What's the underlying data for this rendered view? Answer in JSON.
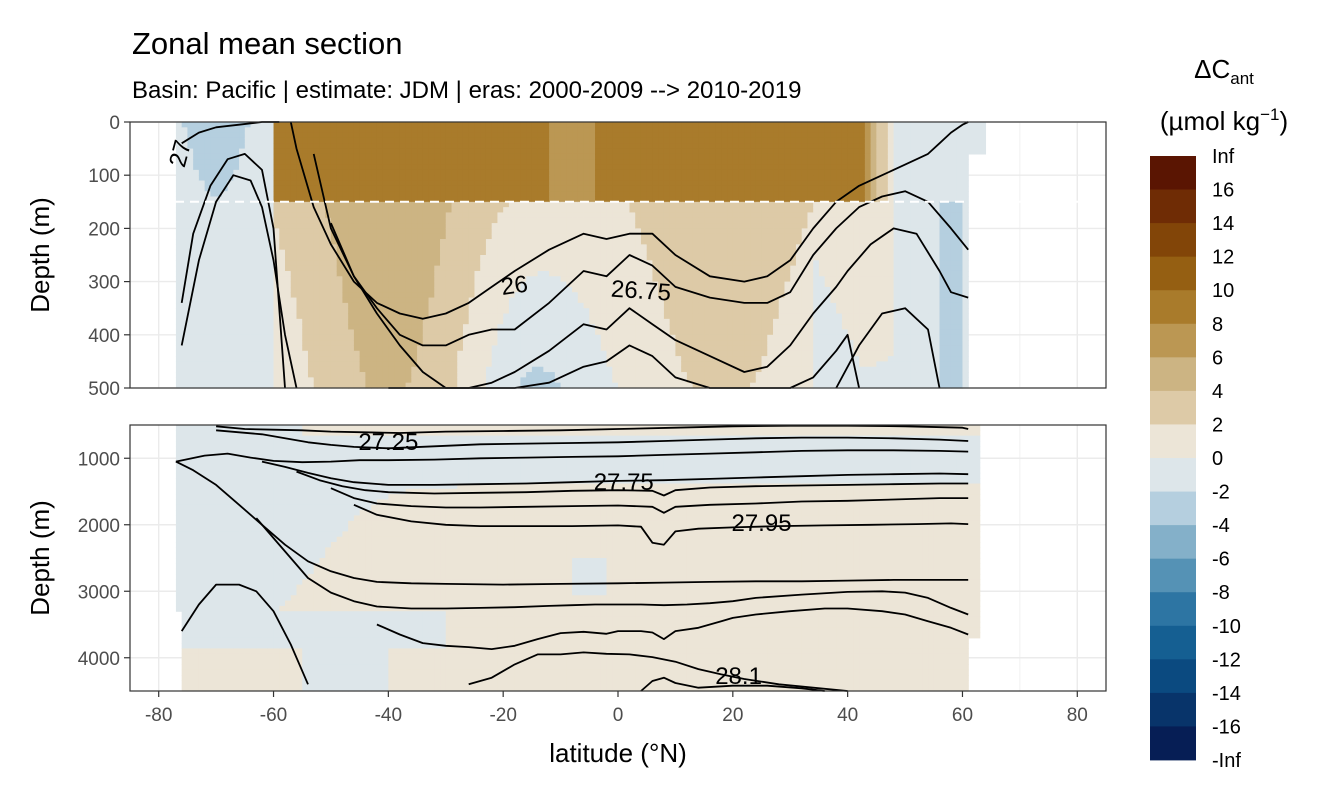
{
  "chart_data": {
    "type": "heatmap",
    "title": "Zonal mean section",
    "subtitle": "Basin: Pacific | estimate: JDM  | eras: 2000-2009 --> 2010-2019",
    "xlabel": "latitude (°N)",
    "ylabel": "Depth (m)",
    "xlim": [
      -85,
      85
    ],
    "x_ticks": [
      "-80",
      "-60",
      "-40",
      "-20",
      "0",
      "20",
      "40",
      "60",
      "80"
    ],
    "grid": true,
    "panels": [
      {
        "name": "upper",
        "ylim": [
          0,
          500
        ],
        "y_reversed": true,
        "y_ticks": [
          "0",
          "100",
          "200",
          "300",
          "400",
          "500"
        ]
      },
      {
        "name": "lower",
        "ylim": [
          500,
          4500
        ],
        "y_reversed": true,
        "y_ticks": [
          "1000",
          "2000",
          "3000",
          "4000"
        ]
      }
    ],
    "reference_depth": 150,
    "legend": {
      "title_main": "ΔC",
      "title_sub": "ant",
      "unit_prefix": "(µmol kg",
      "unit_sup": "−1",
      "unit_suffix": ")",
      "position": "right",
      "labels": [
        "Inf",
        "16",
        "14",
        "12",
        "10",
        "8",
        "6",
        "4",
        "2",
        "0",
        "-2",
        "-4",
        "-6",
        "-8",
        "-10",
        "-12",
        "-14",
        "-16",
        "-Inf"
      ],
      "colors": [
        "#5a1502",
        "#6f2c05",
        "#824508",
        "#955f12",
        "#a97b2b",
        "#bb9753",
        "#ccb483",
        "#ddcaa7",
        "#ece5d7",
        "#dde6ea",
        "#b5cfdf",
        "#84b0c9",
        "#5592b5",
        "#2d75a3",
        "#155f92",
        "#0b4a80",
        "#08346a",
        "#061e55"
      ]
    },
    "contours_upper": [
      {
        "lat": [
          -76,
          -73,
          -70,
          -66,
          -62,
          -59
        ],
        "depth": [
          40,
          20,
          10,
          5,
          0,
          0
        ]
      },
      {
        "lat": [
          -76,
          -74,
          -71,
          -68,
          -65,
          -62,
          -60,
          -58
        ],
        "depth": [
          340,
          210,
          120,
          70,
          60,
          90,
          200,
          500
        ]
      },
      {
        "lat": [
          -76,
          -73,
          -70,
          -67,
          -64,
          -62,
          -60,
          -58,
          -56
        ],
        "depth": [
          420,
          260,
          150,
          100,
          110,
          160,
          260,
          400,
          500
        ]
      },
      {
        "lat": [
          -57,
          -56,
          -53,
          -50,
          -46,
          -42,
          -38,
          -34,
          -30,
          -26,
          -22,
          -18,
          -12,
          -6,
          -2,
          2,
          6,
          10,
          16,
          22,
          26,
          30,
          34,
          38,
          42,
          46,
          50,
          54,
          56,
          58,
          60,
          61
        ],
        "depth": [
          0,
          50,
          160,
          230,
          300,
          340,
          360,
          370,
          360,
          340,
          310,
          280,
          240,
          210,
          220,
          210,
          210,
          250,
          290,
          300,
          290,
          260,
          200,
          150,
          120,
          100,
          80,
          60,
          40,
          20,
          5,
          0
        ]
      },
      {
        "lat": [
          -53,
          -50,
          -46,
          -42,
          -38,
          -34,
          -30,
          -26,
          -22,
          -18,
          -12,
          -6,
          -2,
          2,
          6,
          10,
          16,
          22,
          26,
          30,
          34,
          38,
          42,
          46,
          50,
          54,
          58,
          61
        ],
        "depth": [
          60,
          200,
          290,
          350,
          400,
          420,
          420,
          400,
          390,
          390,
          340,
          280,
          290,
          250,
          270,
          310,
          330,
          340,
          340,
          320,
          250,
          200,
          160,
          140,
          130,
          150,
          200,
          240
        ]
      },
      {
        "lat": [
          -50,
          -46,
          -42,
          -38,
          -34,
          -30,
          -26,
          -22,
          -18,
          -12,
          -6,
          -2,
          2,
          6,
          10,
          16,
          22,
          26,
          30,
          34,
          38,
          40,
          44,
          48,
          52,
          56,
          58,
          61
        ],
        "depth": [
          190,
          290,
          360,
          420,
          470,
          500,
          500,
          490,
          470,
          430,
          380,
          390,
          350,
          380,
          410,
          440,
          470,
          460,
          420,
          360,
          310,
          280,
          230,
          200,
          210,
          280,
          320,
          330
        ]
      },
      {
        "lat": [
          -40,
          -36,
          -30,
          -26,
          -22,
          -18,
          -12,
          -6,
          -2,
          2,
          6,
          10,
          16,
          22,
          26,
          30,
          34,
          38,
          40,
          42
        ],
        "depth": [
          500,
          500,
          500,
          500,
          500,
          500,
          490,
          460,
          450,
          420,
          440,
          480,
          500,
          500,
          500,
          500,
          480,
          430,
          400,
          500
        ]
      },
      {
        "lat": [
          38,
          42,
          46,
          50,
          54,
          56
        ],
        "depth": [
          500,
          420,
          360,
          350,
          390,
          500
        ]
      }
    ],
    "contours_lower": [
      {
        "lat": [
          -70,
          -65,
          -60,
          -55,
          -50,
          -44,
          -38,
          -30,
          -20,
          -10,
          0,
          10,
          20,
          30,
          40,
          50,
          60,
          61
        ],
        "depth": [
          520,
          560,
          570,
          580,
          600,
          610,
          620,
          600,
          590,
          580,
          560,
          540,
          520,
          510,
          510,
          520,
          540,
          560
        ]
      },
      {
        "lat": [
          -70,
          -66,
          -62,
          -58,
          -54,
          -50,
          -46,
          -40,
          -32,
          -24,
          -16,
          -8,
          0,
          8,
          16,
          24,
          32,
          40,
          48,
          56,
          61
        ],
        "depth": [
          580,
          610,
          640,
          700,
          760,
          800,
          830,
          850,
          820,
          790,
          780,
          770,
          760,
          740,
          720,
          700,
          690,
          690,
          700,
          720,
          740
        ]
      },
      {
        "lat": [
          -77,
          -72,
          -68,
          -64,
          -60,
          -55,
          -50,
          -45,
          -40,
          -32,
          -24,
          -16,
          -8,
          0,
          8,
          16,
          24,
          32,
          40,
          48,
          56,
          61
        ],
        "depth": [
          1050,
          960,
          930,
          990,
          1040,
          1060,
          1050,
          1030,
          1030,
          1020,
          1000,
          990,
          980,
          970,
          950,
          930,
          910,
          890,
          880,
          880,
          890,
          900
        ]
      },
      {
        "lat": [
          -62,
          -58,
          -54,
          -50,
          -46,
          -40,
          -32,
          -24,
          -16,
          -8,
          0,
          8,
          16,
          24,
          32,
          40,
          48,
          56,
          61
        ],
        "depth": [
          1050,
          1130,
          1220,
          1300,
          1360,
          1400,
          1400,
          1390,
          1380,
          1360,
          1340,
          1330,
          1310,
          1290,
          1270,
          1250,
          1240,
          1230,
          1240
        ]
      },
      {
        "lat": [
          -56,
          -52,
          -48,
          -44,
          -40,
          -32,
          -24,
          -16,
          -8,
          0,
          6,
          8,
          10,
          16,
          24,
          32,
          40,
          48,
          56,
          61
        ],
        "depth": [
          1200,
          1330,
          1420,
          1480,
          1510,
          1530,
          1520,
          1510,
          1490,
          1480,
          1490,
          1560,
          1480,
          1440,
          1420,
          1410,
          1400,
          1390,
          1380,
          1380
        ]
      },
      {
        "lat": [
          -50,
          -46,
          -42,
          -36,
          -30,
          -24,
          -16,
          -8,
          0,
          6,
          8,
          10,
          16,
          24,
          32,
          40,
          48,
          56,
          61
        ],
        "depth": [
          1450,
          1600,
          1680,
          1720,
          1740,
          1740,
          1730,
          1720,
          1710,
          1730,
          1820,
          1730,
          1700,
          1680,
          1650,
          1640,
          1620,
          1600,
          1600
        ]
      },
      {
        "lat": [
          -46,
          -42,
          -36,
          -30,
          -24,
          -16,
          -8,
          0,
          4,
          6,
          8,
          10,
          14,
          20,
          28,
          36,
          44,
          52,
          58,
          61
        ],
        "depth": [
          1700,
          1850,
          1950,
          2000,
          2020,
          2020,
          2020,
          2010,
          2030,
          2270,
          2300,
          2100,
          2060,
          2040,
          2020,
          2010,
          2000,
          1990,
          1980,
          1990
        ]
      },
      {
        "lat": [
          -77,
          -74,
          -70,
          -66,
          -62,
          -58,
          -54,
          -50,
          -46,
          -42,
          -36,
          -30,
          -20,
          -10,
          0,
          8,
          16,
          24,
          32,
          40,
          48,
          56,
          61
        ],
        "depth": [
          1050,
          1180,
          1400,
          1700,
          2000,
          2300,
          2550,
          2700,
          2800,
          2860,
          2880,
          2890,
          2900,
          2890,
          2880,
          2870,
          2860,
          2850,
          2850,
          2840,
          2830,
          2830,
          2830
        ]
      },
      {
        "lat": [
          -63,
          -58,
          -54,
          -50,
          -46,
          -42,
          -36,
          -30,
          -24,
          -18,
          -12,
          -8,
          -4,
          0,
          4,
          8,
          12,
          16,
          20,
          24,
          32,
          40,
          46,
          50,
          54,
          58,
          61
        ],
        "depth": [
          1900,
          2400,
          2800,
          3020,
          3150,
          3230,
          3260,
          3260,
          3250,
          3240,
          3220,
          3210,
          3200,
          3200,
          3200,
          3210,
          3200,
          3180,
          3150,
          3100,
          3050,
          3010,
          3000,
          3020,
          3100,
          3250,
          3350
        ]
      },
      {
        "lat": [
          -42,
          -38,
          -34,
          -30,
          -26,
          -22,
          -18,
          -14,
          -10,
          -6,
          -2,
          0,
          4,
          6,
          8,
          10,
          14,
          18,
          20,
          24,
          30,
          36,
          40,
          46,
          50,
          54,
          58,
          61
        ],
        "depth": [
          3500,
          3650,
          3780,
          3820,
          3840,
          3870,
          3820,
          3720,
          3630,
          3610,
          3640,
          3600,
          3600,
          3620,
          3720,
          3600,
          3550,
          3450,
          3400,
          3350,
          3300,
          3260,
          3260,
          3300,
          3350,
          3450,
          3550,
          3650
        ]
      },
      {
        "lat": [
          -76,
          -73,
          -70,
          -66,
          -63,
          -60,
          -57,
          -54
        ],
        "depth": [
          3600,
          3200,
          2900,
          2900,
          3000,
          3300,
          3800,
          4400
        ]
      },
      {
        "lat": [
          -26,
          -22,
          -18,
          -14,
          -10,
          -6,
          -2,
          2,
          6,
          10,
          14,
          18,
          22,
          28,
          34,
          40
        ],
        "depth": [
          4400,
          4300,
          4100,
          3950,
          3950,
          3920,
          3940,
          3950,
          3990,
          4060,
          4170,
          4250,
          4320,
          4400,
          4450,
          4500
        ]
      },
      {
        "lat": [
          4,
          6,
          8,
          10,
          14,
          20,
          26,
          32,
          36
        ],
        "depth": [
          4500,
          4350,
          4300,
          4380,
          4450,
          4420,
          4420,
          4460,
          4500
        ]
      }
    ],
    "contour_labels": [
      {
        "text": "26",
        "lat": -18,
        "depth": 310,
        "panel": "upper",
        "angle": -8
      },
      {
        "text": "26.75",
        "lat": 4,
        "depth": 320,
        "panel": "upper",
        "angle": 4
      },
      {
        "text": "27",
        "lat": -76,
        "depth": 60,
        "panel": "upper",
        "angle": -75
      },
      {
        "text": "27.25",
        "lat": -40,
        "depth": 780,
        "panel": "lower",
        "angle": 0
      },
      {
        "text": "27.75",
        "lat": 1,
        "depth": 1380,
        "panel": "lower",
        "angle": 0
      },
      {
        "text": "27.95",
        "lat": 25,
        "depth": 2000,
        "panel": "lower",
        "angle": 0
      },
      {
        "text": "28.1",
        "lat": 21,
        "depth": 4300,
        "panel": "lower",
        "angle": 0
      }
    ]
  }
}
